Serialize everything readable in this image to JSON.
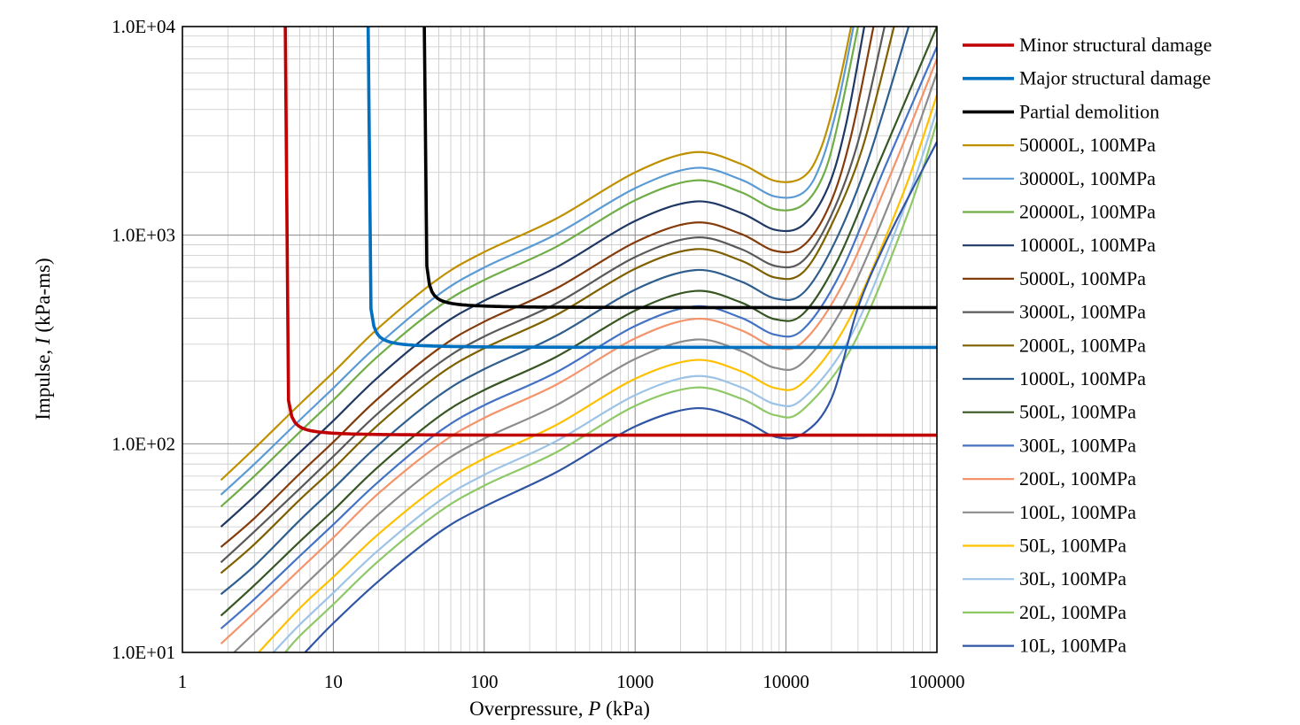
{
  "chart_data": {
    "type": "line",
    "xlabel": "Overpressure, P (kPa)",
    "xlabel_parts": {
      "prefix": "Overpressure, ",
      "var": "P",
      "suffix": " (kPa)"
    },
    "ylabel": "Impulse, I (kPa-ms)",
    "ylabel_parts": {
      "prefix": "Impulse, ",
      "var": "I",
      "suffix": " (kPa-ms)"
    },
    "x_scale": "log",
    "y_scale": "log",
    "xlim": [
      1,
      100000
    ],
    "ylim": [
      10,
      10000
    ],
    "x_ticks": [
      1,
      10,
      100,
      1000,
      10000,
      100000
    ],
    "x_tick_labels": [
      "1",
      "10",
      "100",
      "1000",
      "10000",
      "100000"
    ],
    "y_ticks": [
      10,
      100,
      1000,
      10000
    ],
    "y_tick_labels": [
      "1.0E+01",
      "1.0E+02",
      "1.0E+03",
      "1.0E+04"
    ],
    "grid": "major and minor, both axes",
    "legend_position": "right",
    "thresholds": [
      {
        "name": "Minor structural damage",
        "color": "#c00000",
        "P_min": 4.8,
        "I_min": 110
      },
      {
        "name": "Major structural damage",
        "color": "#0070c0",
        "P_min": 17,
        "I_min": 290
      },
      {
        "name": "Partial demolition",
        "color": "#000000",
        "P_min": 40,
        "I_min": 450
      }
    ],
    "series": [
      {
        "name": "50000L, 100MPa",
        "color": "#bf9000",
        "x": [
          1.8,
          3,
          6,
          10,
          20,
          50,
          100,
          300,
          1000,
          2500,
          5000,
          8500,
          13000,
          17000,
          22000,
          27000
        ],
        "y": [
          67,
          95,
          155,
          220,
          360,
          620,
          830,
          1200,
          2000,
          2500,
          2200,
          1820,
          1900,
          2600,
          5000,
          10000
        ]
      },
      {
        "name": "30000L, 100MPa",
        "color": "#5b9bd5",
        "x": [
          1.8,
          3,
          6,
          10,
          20,
          50,
          100,
          300,
          1000,
          2500,
          5000,
          8500,
          13000,
          17000,
          22000,
          28000
        ],
        "y": [
          57,
          80,
          130,
          185,
          300,
          520,
          700,
          1010,
          1680,
          2100,
          1850,
          1530,
          1600,
          2200,
          4200,
          10000
        ]
      },
      {
        "name": "20000L, 100MPa",
        "color": "#70ad47",
        "x": [
          1.8,
          3,
          6,
          10,
          20,
          50,
          100,
          300,
          1000,
          2500,
          5000,
          8500,
          13000,
          18000,
          23000,
          30000
        ],
        "y": [
          50,
          70,
          114,
          162,
          265,
          455,
          610,
          880,
          1470,
          1830,
          1610,
          1330,
          1400,
          2000,
          3900,
          10000
        ]
      },
      {
        "name": "10000L, 100MPa",
        "color": "#1f3864",
        "x": [
          1.8,
          3,
          6,
          10,
          20,
          50,
          100,
          300,
          1000,
          2500,
          5000,
          8500,
          13000,
          19000,
          25000,
          33000
        ],
        "y": [
          40,
          56,
          91,
          129,
          210,
          362,
          485,
          700,
          1170,
          1450,
          1280,
          1060,
          1120,
          1700,
          3400,
          10000
        ]
      },
      {
        "name": "5000L, 100MPa",
        "color": "#843c0c",
        "x": [
          1.8,
          3,
          6,
          10,
          20,
          50,
          100,
          300,
          1000,
          2500,
          5000,
          8500,
          13000,
          19500,
          27000,
          38000
        ],
        "y": [
          32,
          44,
          72,
          102,
          166,
          286,
          385,
          555,
          925,
          1150,
          1015,
          840,
          890,
          1400,
          3000,
          10000
        ]
      },
      {
        "name": "3000L, 100MPa",
        "color": "#595959",
        "x": [
          1.8,
          3,
          6,
          10,
          20,
          50,
          100,
          300,
          1000,
          2500,
          5000,
          8500,
          13000,
          20000,
          30000,
          45000
        ],
        "y": [
          27,
          38,
          61,
          87,
          141,
          243,
          327,
          470,
          785,
          975,
          860,
          712,
          755,
          1250,
          2800,
          10000
        ]
      },
      {
        "name": "2000L, 100MPa",
        "color": "#7f6000",
        "x": [
          1.8,
          3,
          6,
          10,
          20,
          50,
          100,
          300,
          1000,
          2500,
          5000,
          8500,
          13000,
          20000,
          32000,
          52000
        ],
        "y": [
          24,
          33,
          54,
          76,
          124,
          214,
          287,
          414,
          690,
          857,
          757,
          626,
          665,
          1120,
          2600,
          10000
        ]
      },
      {
        "name": "1000L, 100MPa",
        "color": "#2e5e8e",
        "x": [
          1.8,
          3,
          6,
          10,
          20,
          50,
          100,
          300,
          1000,
          2500,
          5000,
          8500,
          13000,
          21000,
          35000,
          65000
        ],
        "y": [
          19,
          26,
          43,
          61,
          99,
          170,
          228,
          329,
          548,
          680,
          601,
          497,
          528,
          920,
          2300,
          10000
        ]
      },
      {
        "name": "500L, 100MPa",
        "color": "#375623",
        "x": [
          1.8,
          3,
          6,
          10,
          20,
          50,
          100,
          300,
          1000,
          2500,
          5000,
          8500,
          13000,
          22000,
          40000,
          100000
        ],
        "y": [
          15,
          21,
          34,
          48,
          78,
          135,
          181,
          261,
          435,
          540,
          477,
          395,
          420,
          760,
          2100,
          10000
        ]
      },
      {
        "name": "300L, 100MPa",
        "color": "#4472c4",
        "x": [
          1.8,
          3,
          6,
          10,
          20,
          50,
          100,
          300,
          1000,
          2500,
          5000,
          8500,
          13000,
          23000,
          45000,
          100000
        ],
        "y": [
          13,
          18,
          29,
          41,
          66,
          114,
          153,
          220,
          367,
          456,
          403,
          333,
          354,
          660,
          2100,
          8000
        ]
      },
      {
        "name": "200L, 100MPa",
        "color": "#f4946c",
        "x": [
          1.8,
          3,
          6,
          10,
          20,
          50,
          100,
          300,
          1000,
          2500,
          5000,
          8500,
          13000,
          24000,
          50000,
          100000
        ],
        "y": [
          11,
          15.5,
          25,
          35.5,
          58,
          99,
          133,
          192,
          320,
          397,
          351,
          290,
          309,
          590,
          2000,
          7000
        ]
      },
      {
        "name": "100L, 100MPa",
        "color": "#8c8c8c",
        "x": [
          2.2,
          3,
          6,
          10,
          20,
          50,
          100,
          300,
          1000,
          2500,
          5000,
          8500,
          13000,
          25000,
          55000,
          100000
        ],
        "y": [
          10,
          12.4,
          20,
          28.5,
          46,
          79,
          106,
          153,
          255,
          316,
          279,
          231,
          246,
          480,
          1800,
          6000
        ]
      },
      {
        "name": "50L, 100MPa",
        "color": "#ffc000",
        "x": [
          3.2,
          6,
          10,
          20,
          50,
          100,
          300,
          1000,
          2500,
          5000,
          8500,
          13000,
          26000,
          60000,
          100000
        ],
        "y": [
          10,
          16.3,
          23,
          37,
          63,
          85,
          123,
          205,
          252,
          223,
          185,
          197,
          390,
          1600,
          4700
        ]
      },
      {
        "name": "30L, 100MPa",
        "color": "#9dc3e6",
        "x": [
          4,
          6,
          10,
          20,
          50,
          100,
          300,
          1000,
          2500,
          5000,
          8500,
          13000,
          27000,
          62000,
          100000
        ],
        "y": [
          10,
          13.6,
          19.3,
          31,
          53,
          71,
          103,
          171,
          211,
          187,
          155,
          165,
          330,
          1400,
          4000
        ]
      },
      {
        "name": "20L, 100MPa",
        "color": "#8fc866",
        "x": [
          4.8,
          6,
          10,
          20,
          50,
          100,
          300,
          1000,
          2500,
          5000,
          8500,
          13000,
          28000,
          65000,
          100000
        ],
        "y": [
          10,
          12,
          17,
          27.5,
          47,
          63,
          91,
          152,
          186,
          165,
          137,
          146,
          300,
          1300,
          3500
        ]
      },
      {
        "name": "10L, 100MPa",
        "color": "#2f55a4",
        "x": [
          6.5,
          10,
          20,
          50,
          100,
          300,
          1000,
          2500,
          5000,
          8500,
          13000,
          20000,
          30000,
          45000,
          70000,
          100000
        ],
        "y": [
          10,
          13.8,
          22,
          37.5,
          50,
          73,
          121,
          148,
          131,
          108,
          112,
          165,
          450,
          900,
          1700,
          2800
        ]
      }
    ]
  }
}
